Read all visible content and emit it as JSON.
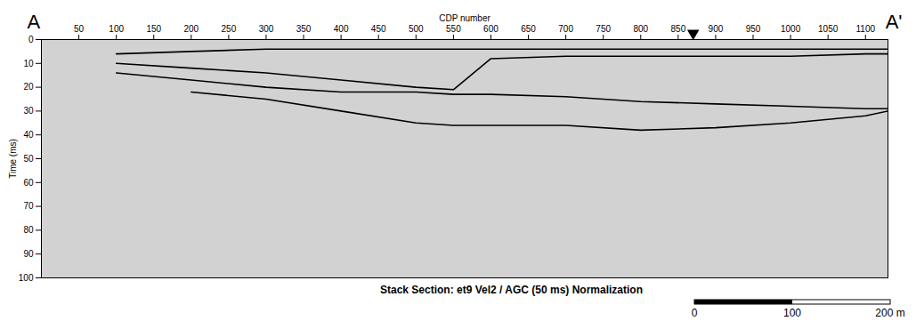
{
  "chart_data": {
    "type": "line",
    "title": "Stack Section: et9 Vel2 / AGC (50 ms) Normalization",
    "x_label": "CDP number",
    "y_label": "Time (ms)",
    "section_labels": [
      "A",
      "A'"
    ],
    "x": [
      100,
      200,
      300,
      400,
      500,
      550,
      600,
      700,
      800,
      900,
      1000,
      1100,
      1130
    ],
    "series": [
      {
        "color": "#000000",
        "values": [
          6,
          5,
          4,
          4,
          4,
          4,
          4,
          4,
          4,
          4,
          4,
          4,
          4
        ]
      },
      {
        "color": "#000000",
        "values": [
          10,
          12,
          14,
          17,
          20,
          21,
          8,
          7,
          7,
          7,
          7,
          6,
          6
        ]
      },
      {
        "color": "#000000",
        "values": [
          14,
          17,
          20,
          22,
          22,
          23,
          23,
          24,
          26,
          27,
          28,
          29,
          29
        ]
      },
      {
        "color": "#000000",
        "values": [
          null,
          22,
          25,
          30,
          35,
          36,
          36,
          36,
          38,
          37,
          35,
          32,
          30
        ]
      }
    ],
    "xlim": [
      0,
      1130
    ],
    "xticks": [
      50,
      100,
      150,
      200,
      250,
      300,
      350,
      400,
      450,
      500,
      550,
      600,
      650,
      700,
      750,
      800,
      850,
      900,
      950,
      1000,
      1050,
      1100
    ],
    "ylim": [
      0,
      100
    ],
    "yticks": [
      0,
      10,
      20,
      30,
      40,
      50,
      60,
      70,
      80,
      90,
      100
    ],
    "arrow_x": 870,
    "scale_bar": {
      "ticks": [
        0,
        100,
        {
          "value": 200,
          "label": "200 m"
        }
      ]
    }
  }
}
